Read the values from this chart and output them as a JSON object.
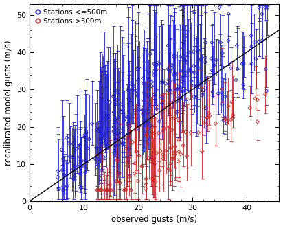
{
  "xlabel": "observed gusts (m/s)",
  "ylabel": "recalibrated model gusts (m/s)",
  "xlim": [
    0,
    46
  ],
  "ylim": [
    0,
    53
  ],
  "xticks": [
    0,
    10,
    20,
    30,
    40
  ],
  "yticks": [
    0,
    10,
    20,
    30,
    40,
    50
  ],
  "legend_labels": [
    "Stations <=500m",
    "Stations >500m"
  ],
  "blue_color": "#2222cc",
  "red_color": "#cc2222",
  "bg_color": "#ffffff",
  "seed": 7,
  "n_blue": 280,
  "n_red": 100
}
